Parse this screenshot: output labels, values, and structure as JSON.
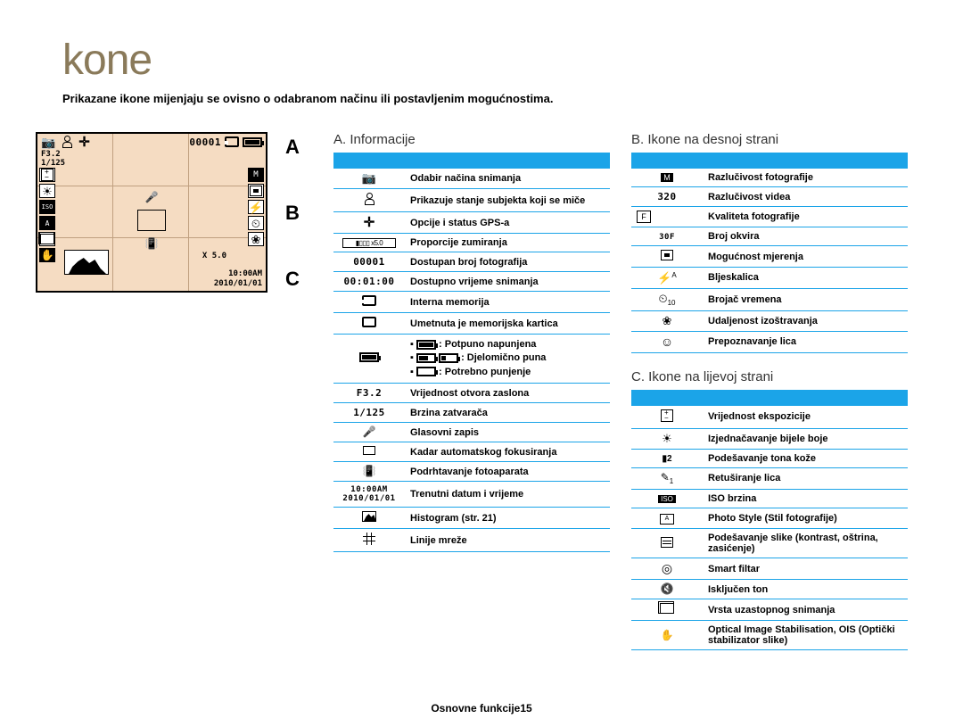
{
  "page": {
    "title": "kone",
    "subtitle": "Prikazane ikone mijenjaju se ovisno o odabranom načinu ili postavljenim mogućnostima.",
    "footer": "Osnovne funkcije15"
  },
  "labels": {
    "A": "A",
    "B": "B",
    "C": "C"
  },
  "diagram": {
    "shot_counter": "00001",
    "aperture": "F3.2",
    "shutter": "1/125",
    "zoom": "X 5.0",
    "time": "10:00AM",
    "date": "2010/01/01",
    "res_badge": "M"
  },
  "sectionA": {
    "title": "A. Informacije",
    "rows": [
      {
        "icon": "camera",
        "desc": "Odabir načina snimanja"
      },
      {
        "icon": "person-move",
        "desc": "Prikazuje stanje subjekta koji se miče"
      },
      {
        "icon": "gps",
        "desc": "Opcije i status GPS-a"
      },
      {
        "icon": "zoom-bar",
        "desc": "Proporcije zumiranja"
      },
      {
        "icon": "counter",
        "text": "00001",
        "desc": "Dostupan broj fotografija"
      },
      {
        "icon": "rectime",
        "text": "00:01:00",
        "desc": "Dostupno vrijeme snimanja"
      },
      {
        "icon": "int-mem",
        "desc": "Interna memorija"
      },
      {
        "icon": "card",
        "desc": "Umetnuta je memorijska kartica"
      },
      {
        "icon": "battery",
        "desc_html": "battery-levels"
      },
      {
        "icon": "aperture-txt",
        "text": "F3.2",
        "desc": "Vrijednost otvora zaslona"
      },
      {
        "icon": "shutter-txt",
        "text": "1/125",
        "desc": "Brzina zatvarača"
      },
      {
        "icon": "mic",
        "desc": "Glasovni zapis"
      },
      {
        "icon": "focus-sq",
        "desc": "Kadar automatskog fokusiranja"
      },
      {
        "icon": "shake",
        "desc": "Podrhtavanje fotoaparata"
      },
      {
        "icon": "datetime",
        "text1": "10:00AM",
        "text2": "2010/01/01",
        "desc": "Trenutni datum i vrijeme"
      },
      {
        "icon": "histogram",
        "desc": "Histogram (str. 21)"
      },
      {
        "icon": "grid",
        "desc": "Linije mreže"
      }
    ],
    "battery_levels": {
      "full": ": Potpuno napunjena",
      "partial": ": Djelomično puna",
      "low": ": Potrebno punjenje"
    }
  },
  "sectionB": {
    "title": "B. Ikone na desnoj strani",
    "rows": [
      {
        "icon": "res-photo",
        "text": "M",
        "desc": "Razlučivost fotografije"
      },
      {
        "icon": "res-video",
        "text": "320",
        "desc": "Razlučivost videa"
      },
      {
        "icon": "quality",
        "text": "F",
        "desc": "Kvaliteta fotografije"
      },
      {
        "icon": "fps",
        "text": "30F",
        "desc": "Broj okvira"
      },
      {
        "icon": "metering",
        "desc": "Mogućnost mjerenja"
      },
      {
        "icon": "flash",
        "text": "A",
        "desc": "Bljeskalica"
      },
      {
        "icon": "timer",
        "text": "10",
        "desc": "Brojač vremena"
      },
      {
        "icon": "macro",
        "desc": "Udaljenost izoštravanja"
      },
      {
        "icon": "face",
        "desc": "Prepoznavanje lica"
      }
    ]
  },
  "sectionC": {
    "title": "C. Ikone na lijevoj strani",
    "rows": [
      {
        "icon": "ev",
        "desc": "Vrijednost ekspozicije"
      },
      {
        "icon": "wb",
        "desc": "Izjednačavanje bijele boje"
      },
      {
        "icon": "skin",
        "text": "2",
        "desc": "Podešavanje tona kože"
      },
      {
        "icon": "retouch",
        "text": "1",
        "desc": "Retuširanje lica"
      },
      {
        "icon": "iso",
        "text": "ISO",
        "desc": "ISO brzina"
      },
      {
        "icon": "photostyle",
        "text": "A",
        "desc": "Photo Style (Stil fotografije)"
      },
      {
        "icon": "adjust",
        "desc": "Podešavanje slike (kontrast, oštrina, zasićenje)"
      },
      {
        "icon": "smart",
        "desc": "Smart filtar"
      },
      {
        "icon": "mute",
        "desc": "Isključen ton"
      },
      {
        "icon": "burst",
        "desc": "Vrsta uzastopnog snimanja"
      },
      {
        "icon": "ois",
        "desc": "Optical Image Stabilisation, OIS (Optički stabilizator slike)"
      }
    ]
  },
  "colors": {
    "title": "#8a7a5a",
    "accent": "#1ba4e8",
    "diagram_bg": "#f5dcc2"
  }
}
